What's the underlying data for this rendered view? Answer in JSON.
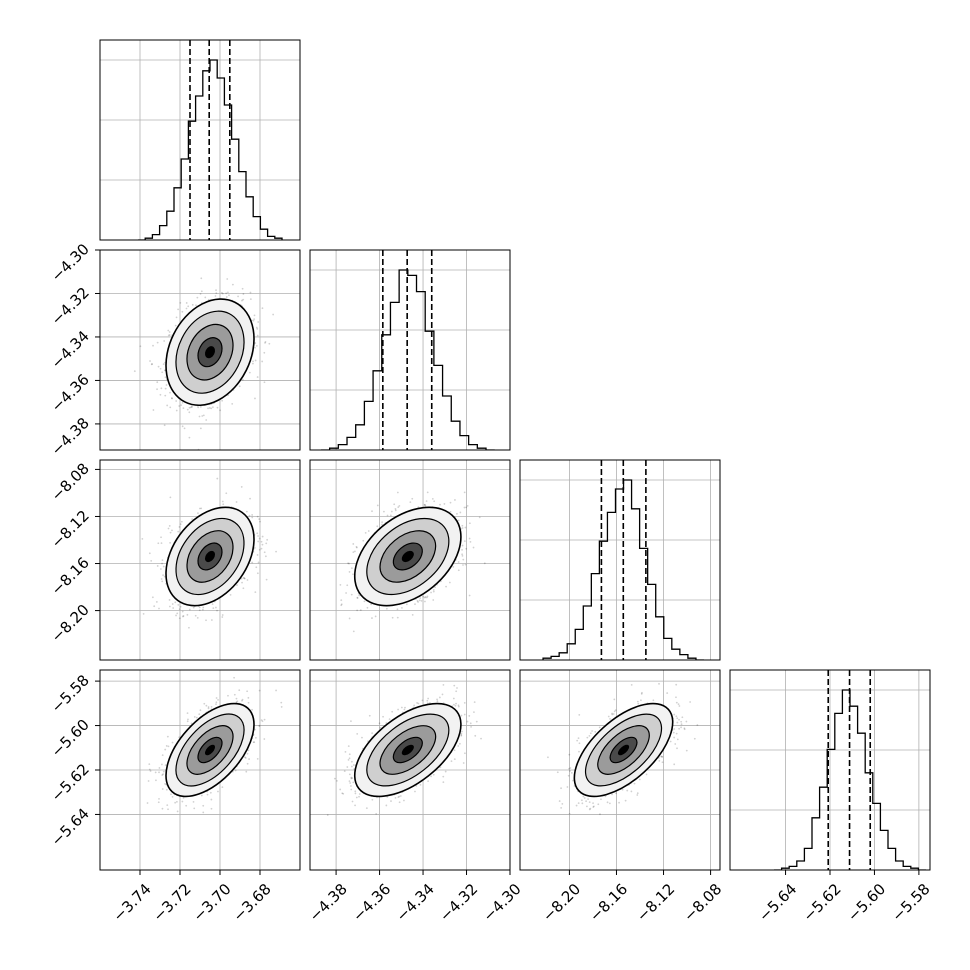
{
  "chart_data": {
    "type": "corner",
    "parameters": [
      "",
      "",
      "",
      ""
    ],
    "centers": [
      -3.705,
      -4.347,
      -8.154,
      -5.611
    ],
    "sigmas": [
      0.01,
      0.0111,
      0.019,
      0.0095
    ],
    "quantiles": [
      [
        -3.715,
        -3.7054,
        -3.6951
      ],
      [
        -4.3585,
        -4.3473,
        -4.336
      ],
      [
        -8.1728,
        -8.1542,
        -8.135
      ],
      [
        -5.6208,
        -5.6112,
        -5.6019
      ]
    ],
    "correlations": [
      [
        1.0,
        0.25,
        0.35,
        0.55
      ],
      [
        0.25,
        1.0,
        0.4,
        0.55
      ],
      [
        0.35,
        0.4,
        1.0,
        0.6
      ],
      [
        0.55,
        0.55,
        0.6,
        1.0
      ]
    ],
    "histograms": [
      [
        0.0,
        0.01,
        0.03,
        0.08,
        0.16,
        0.29,
        0.45,
        0.66,
        0.8,
        0.94,
        1.0,
        0.9,
        0.75,
        0.56,
        0.38,
        0.24,
        0.13,
        0.06,
        0.02,
        0.01
      ],
      [
        0.0,
        0.01,
        0.03,
        0.07,
        0.14,
        0.27,
        0.44,
        0.64,
        0.82,
        1.0,
        0.97,
        0.88,
        0.66,
        0.47,
        0.3,
        0.16,
        0.08,
        0.03,
        0.01,
        0.0
      ],
      [
        0.01,
        0.02,
        0.04,
        0.09,
        0.17,
        0.3,
        0.48,
        0.66,
        0.82,
        0.95,
        1.0,
        0.84,
        0.62,
        0.42,
        0.24,
        0.12,
        0.06,
        0.03,
        0.01,
        0.0
      ],
      [
        0.0,
        0.01,
        0.02,
        0.05,
        0.12,
        0.29,
        0.46,
        0.67,
        0.87,
        1.0,
        0.91,
        0.76,
        0.54,
        0.37,
        0.22,
        0.12,
        0.05,
        0.02,
        0.01,
        0.0
      ]
    ],
    "ranges": [
      [
        -3.76,
        -3.66
      ],
      [
        -4.392,
        -4.3
      ],
      [
        -8.242,
        -8.072
      ],
      [
        -5.665,
        -5.575
      ]
    ],
    "ticks": [
      [
        "−3.74",
        "−3.72",
        "−3.70",
        "−3.68"
      ],
      [
        "−4.38",
        "−4.36",
        "−4.34",
        "−4.32",
        "−4.30"
      ],
      [
        "−8.20",
        "−8.16",
        "−8.12",
        "−8.08"
      ],
      [
        "−5.64",
        "−5.62",
        "−5.60",
        "−5.58"
      ]
    ],
    "tick_values": [
      [
        -3.74,
        -3.72,
        -3.7,
        -3.68
      ],
      [
        -4.38,
        -4.36,
        -4.34,
        -4.32,
        -4.3
      ],
      [
        -8.2,
        -8.16,
        -8.12,
        -8.08
      ],
      [
        -5.64,
        -5.62,
        -5.6,
        -5.58
      ]
    ],
    "grid": true,
    "colors": {
      "line": "#000000",
      "grid": "#b0b0b0",
      "points": "#000000"
    }
  }
}
